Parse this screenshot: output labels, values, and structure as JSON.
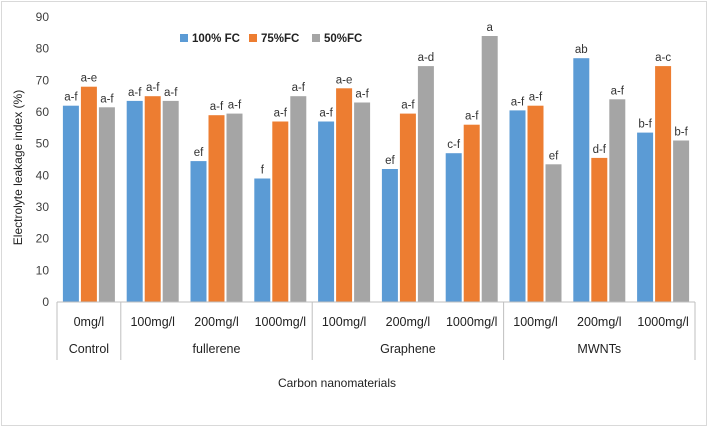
{
  "chart_data": {
    "type": "bar",
    "title": "",
    "xlabel": "Carbon nanomaterials",
    "ylabel": "Electrolyte leakage index (%)",
    "ylim": [
      0,
      90
    ],
    "yticks": [
      "0",
      "10",
      "20",
      "30",
      "40",
      "50",
      "60",
      "70",
      "80",
      "90"
    ],
    "grid": false,
    "legend_position": "top-left",
    "groups": [
      {
        "name": "Control",
        "categories": [
          "0mg/l"
        ]
      },
      {
        "name": "fullerene",
        "categories": [
          "100mg/l",
          "200mg/l",
          "1000mg/l"
        ]
      },
      {
        "name": "Graphene",
        "categories": [
          "100mg/l",
          "200mg/l",
          "1000mg/l"
        ]
      },
      {
        "name": "MWNTs",
        "categories": [
          "100mg/l",
          "200mg/l",
          "1000mg/l"
        ]
      }
    ],
    "categories": [
      "0mg/l",
      "100mg/l",
      "200mg/l",
      "1000mg/l",
      "100mg/l",
      "200mg/l",
      "1000mg/l",
      "100mg/l",
      "200mg/l",
      "1000mg/l"
    ],
    "series": [
      {
        "name": "100% FC",
        "color": "#5B9BD5",
        "values": [
          62,
          63.5,
          44.5,
          39,
          57,
          42,
          47,
          60.5,
          77,
          53.5
        ],
        "labels": [
          "a-f",
          "a-f",
          "ef",
          "f",
          "a-f",
          "ef",
          "c-f",
          "a-f",
          "ab",
          "b-f"
        ]
      },
      {
        "name": "75%FC",
        "color": "#ED7D31",
        "values": [
          68,
          65,
          59,
          57,
          67.5,
          59.5,
          56,
          62,
          45.5,
          74.5
        ],
        "labels": [
          "a-e",
          "a-f",
          "a-f",
          "a-f",
          "a-e",
          "a-f",
          "a-f",
          "a-f",
          "d-f",
          "a-c"
        ]
      },
      {
        "name": "50%FC",
        "color": "#A5A5A5",
        "values": [
          61.5,
          63.5,
          59.5,
          65,
          63,
          74.5,
          84,
          43.5,
          64,
          51
        ],
        "labels": [
          "a-f",
          "a-f",
          "a-f",
          "a-f",
          "a-f",
          "a-d",
          "a",
          "ef",
          "a-f",
          "b-f"
        ]
      }
    ]
  }
}
